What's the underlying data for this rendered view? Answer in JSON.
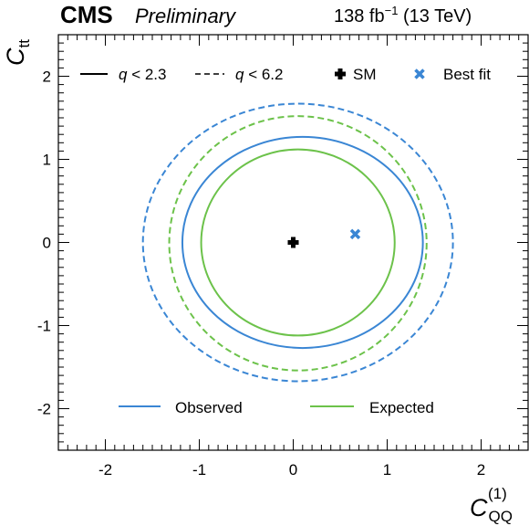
{
  "chart_data": {
    "type": "contour",
    "experiment": "CMS",
    "status": "Preliminary",
    "lumi_label": "138 fb",
    "lumi_sup": "−1",
    "energy_label": " (13 TeV)",
    "xlabel": {
      "main": "C",
      "sub": "QQ",
      "sup": "(1)"
    },
    "ylabel": {
      "main": "C",
      "sub": "tt"
    },
    "xlim": [
      -2.5,
      2.5
    ],
    "ylim": [
      -2.5,
      2.5
    ],
    "xticks": [
      -2,
      -1,
      0,
      1,
      2
    ],
    "yticks": [
      -2,
      -1,
      0,
      1,
      2
    ],
    "xtick_labels": [
      "-2",
      "-1",
      "0",
      "1",
      "2"
    ],
    "ytick_labels": [
      "-2",
      "-1",
      "0",
      "1",
      "2"
    ],
    "legend_styles": [
      {
        "label": "q < 2.3",
        "style": "solid"
      },
      {
        "label": "q < 6.2",
        "style": "dashed"
      },
      {
        "label": "SM",
        "marker": "plus",
        "color": "#000000"
      },
      {
        "label": "Best fit",
        "marker": "x",
        "color": "#3a86d4"
      }
    ],
    "legend_series": [
      {
        "label": "Observed",
        "color": "#3a86d4"
      },
      {
        "label": "Expected",
        "color": "#6cc24a"
      }
    ],
    "contours": [
      {
        "series": "Observed",
        "level": "q < 2.3",
        "style": "solid",
        "color": "#3a86d4",
        "cx": 0.1,
        "cy": 0.0,
        "rx": 1.28,
        "ry": 1.27
      },
      {
        "series": "Observed",
        "level": "q < 6.2",
        "style": "dashed",
        "color": "#3a86d4",
        "cx": 0.05,
        "cy": 0.0,
        "rx": 1.65,
        "ry": 1.67
      },
      {
        "series": "Expected",
        "level": "q < 2.3",
        "style": "solid",
        "color": "#6cc24a",
        "cx": 0.05,
        "cy": 0.0,
        "rx": 1.03,
        "ry": 1.12
      },
      {
        "series": "Expected",
        "level": "q < 6.2",
        "style": "dashed",
        "color": "#6cc24a",
        "cx": 0.05,
        "cy": -0.01,
        "rx": 1.37,
        "ry": 1.53
      }
    ],
    "points": [
      {
        "name": "SM",
        "x": 0.0,
        "y": 0.0,
        "marker": "plus",
        "color": "#000000"
      },
      {
        "name": "Best fit",
        "x": 0.66,
        "y": 0.1,
        "marker": "x",
        "color": "#3a86d4"
      }
    ]
  }
}
